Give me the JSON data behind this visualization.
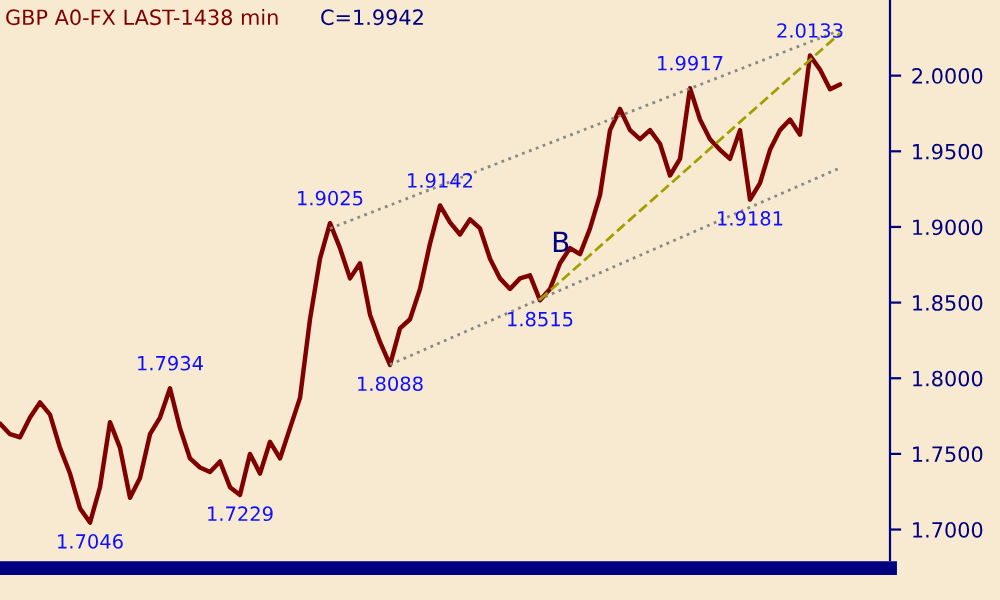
{
  "chart_data": {
    "type": "line",
    "title": "GBP A0-FX LAST-1438 min",
    "subtitle": "C=1.9942",
    "categories": [
      null,
      null,
      null,
      null,
      null,
      null,
      null,
      null,
      null,
      null,
      null,
      null,
      null,
      null,
      null,
      null,
      null,
      null,
      null,
      null,
      null,
      null,
      null,
      null,
      null,
      null,
      null,
      null,
      null,
      null,
      null,
      null,
      null,
      null,
      null,
      null,
      null,
      null,
      null,
      null,
      null,
      null,
      null,
      null,
      null,
      null,
      null,
      null,
      null,
      null,
      null,
      null,
      null,
      null,
      null,
      null,
      null,
      null,
      null,
      null,
      null,
      null,
      null,
      null,
      null,
      null,
      null,
      null,
      null,
      null,
      null,
      null,
      null,
      null,
      null,
      null,
      null,
      null,
      null,
      null,
      null,
      null,
      null,
      null,
      null
    ],
    "series": [
      {
        "color": "#800000",
        "values": [
          1.77,
          1.763,
          1.761,
          1.774,
          1.784,
          1.776,
          1.754,
          1.737,
          1.714,
          1.7046,
          1.728,
          1.771,
          1.754,
          1.721,
          1.734,
          1.763,
          1.774,
          1.7934,
          1.767,
          1.747,
          1.741,
          1.738,
          1.745,
          1.728,
          1.7229,
          1.75,
          1.737,
          1.758,
          1.747,
          1.767,
          1.787,
          1.839,
          1.879,
          1.9025,
          1.886,
          1.866,
          1.876,
          1.842,
          1.824,
          1.8088,
          1.833,
          1.839,
          1.859,
          1.889,
          1.9142,
          1.903,
          1.895,
          1.905,
          1.899,
          1.879,
          1.866,
          1.859,
          1.866,
          1.868,
          1.8515,
          1.859,
          1.876,
          1.886,
          1.882,
          1.899,
          1.921,
          1.964,
          1.978,
          1.964,
          1.958,
          1.964,
          1.955,
          1.934,
          1.945,
          1.9917,
          1.971,
          1.958,
          1.951,
          1.945,
          1.964,
          1.9181,
          1.929,
          1.951,
          1.964,
          1.971,
          1.961,
          2.0133,
          2.004,
          1.991,
          1.9942
        ]
      },
      {
        "type": "line",
        "color": "#888888",
        "line_style": "dotted",
        "values": [
          null,
          null,
          null,
          null,
          null,
          null,
          null,
          null,
          null,
          null,
          null,
          null,
          null,
          null,
          null,
          null,
          null,
          null,
          null,
          null,
          null,
          null,
          null,
          null,
          null,
          null,
          null,
          null,
          null,
          null,
          null,
          null,
          null,
          1.899,
          null,
          null,
          null,
          null,
          null,
          null,
          null,
          null,
          null,
          null,
          null,
          null,
          null,
          null,
          null,
          null,
          null,
          null,
          null,
          null,
          null,
          null,
          null,
          null,
          null,
          null,
          null,
          null,
          null,
          null,
          null,
          null,
          null,
          null,
          null,
          null,
          null,
          null,
          null,
          null,
          null,
          null,
          null,
          null,
          null,
          null,
          null,
          null,
          null,
          null,
          2.03
        ]
      },
      {
        "type": "line",
        "color": "#888888",
        "line_style": "dotted",
        "values": [
          null,
          null,
          null,
          null,
          null,
          null,
          null,
          null,
          null,
          null,
          null,
          null,
          null,
          null,
          null,
          null,
          null,
          null,
          null,
          null,
          null,
          null,
          null,
          null,
          null,
          null,
          null,
          null,
          null,
          null,
          null,
          null,
          null,
          null,
          null,
          null,
          null,
          null,
          null,
          1.809,
          null,
          null,
          null,
          null,
          null,
          null,
          null,
          null,
          null,
          null,
          null,
          null,
          null,
          null,
          null,
          null,
          null,
          null,
          null,
          null,
          null,
          null,
          null,
          null,
          null,
          null,
          null,
          null,
          null,
          null,
          null,
          null,
          null,
          null,
          null,
          null,
          null,
          null,
          null,
          null,
          null,
          null,
          null,
          null,
          1.939
        ]
      },
      {
        "type": "line",
        "color": "#a0a000",
        "line_style": "dashed",
        "values": [
          null,
          null,
          null,
          null,
          null,
          null,
          null,
          null,
          null,
          null,
          null,
          null,
          null,
          null,
          null,
          null,
          null,
          null,
          null,
          null,
          null,
          null,
          null,
          null,
          null,
          null,
          null,
          null,
          null,
          null,
          null,
          null,
          null,
          null,
          null,
          null,
          null,
          null,
          null,
          null,
          null,
          null,
          null,
          null,
          null,
          null,
          null,
          null,
          null,
          null,
          null,
          null,
          null,
          null,
          1.852,
          null,
          null,
          null,
          null,
          null,
          null,
          null,
          null,
          null,
          null,
          null,
          null,
          null,
          null,
          null,
          null,
          null,
          null,
          null,
          null,
          null,
          null,
          null,
          null,
          null,
          null,
          null,
          null,
          null,
          2.028
        ]
      }
    ],
    "ylim": [
      1.68,
      2.05
    ],
    "yticks": [
      {
        "value": 1.7,
        "label": "1.7000"
      },
      {
        "value": 1.75,
        "label": "1.7500"
      },
      {
        "value": 1.8,
        "label": "1.8000"
      },
      {
        "value": 1.85,
        "label": "1.8500"
      },
      {
        "value": 1.9,
        "label": "1.9000"
      },
      {
        "value": 1.95,
        "label": "1.9500"
      },
      {
        "value": 2.0,
        "label": "2.0000"
      }
    ],
    "annotations": [
      {
        "text": "1.7046",
        "y": 1.7046
      },
      {
        "text": "1.7934",
        "y": 1.7934
      },
      {
        "text": "1.7229",
        "y": 1.7229
      },
      {
        "text": "1.9025",
        "y": 1.9025
      },
      {
        "text": "1.8088",
        "y": 1.8088
      },
      {
        "text": "1.9142",
        "y": 1.9142
      },
      {
        "text": "1.8515",
        "y": 1.8515
      },
      {
        "text": "1.9917",
        "y": 1.9917
      },
      {
        "text": "1.9181",
        "y": 1.9181
      },
      {
        "text": "2.0133",
        "y": 2.0133
      },
      "B"
    ],
    "grid": false,
    "legend": false
  }
}
